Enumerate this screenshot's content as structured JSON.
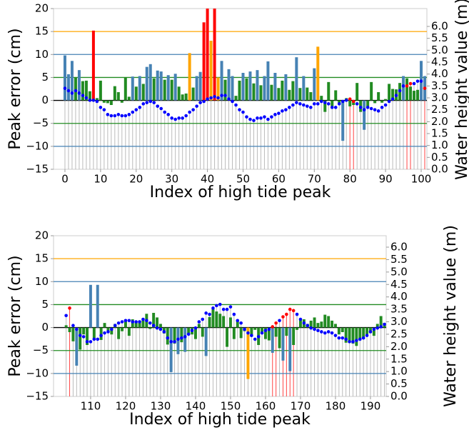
{
  "chart_data": [
    {
      "type": "bar",
      "xlabel": "Index of high tide peak",
      "ylabel": "Peak error (cm)",
      "y2label": "Water height value (m)",
      "xlim": [
        -3.2,
        101.6
      ],
      "xticks": [
        0,
        10,
        20,
        30,
        40,
        50,
        60,
        70,
        80,
        90,
        100
      ],
      "ylim": [
        -15,
        20
      ],
      "yticks": [
        {
          "value": -15,
          "label": "−15"
        },
        {
          "value": -10,
          "label": "−10"
        },
        {
          "value": -5,
          "label": "−5"
        },
        0,
        5,
        10,
        15,
        20
      ],
      "y2lim": [
        0,
        6.75
      ],
      "y2ticks": [
        {
          "value": 0,
          "label": "0.0"
        },
        0.5,
        {
          "value": 1,
          "label": "1.0"
        },
        1.5,
        {
          "value": 2,
          "label": "2.0"
        },
        2.5,
        {
          "value": 3,
          "label": "3.0"
        },
        3.5,
        {
          "value": 4,
          "label": "4.0"
        },
        4.5,
        {
          "value": 5,
          "label": "5.0"
        },
        5.5,
        {
          "value": 6,
          "label": "6.0"
        }
      ],
      "reference_lines": [
        {
          "value": 15,
          "color": "orange"
        },
        {
          "value": 10,
          "color": "steelblue"
        },
        {
          "value": 5,
          "color": "forestgreen"
        },
        {
          "value": 0,
          "color": "black"
        },
        {
          "value": -5,
          "color": "forestgreen"
        },
        {
          "value": -10,
          "color": "steelblue"
        }
      ],
      "x": [
        0,
        1,
        2,
        3,
        4,
        5,
        6,
        7,
        8,
        9,
        10,
        11,
        12,
        13,
        14,
        15,
        16,
        17,
        18,
        19,
        20,
        21,
        22,
        23,
        24,
        25,
        26,
        27,
        28,
        29,
        30,
        31,
        32,
        33,
        34,
        35,
        36,
        37,
        38,
        39,
        40,
        41,
        42,
        43,
        44,
        45,
        46,
        47,
        48,
        49,
        50,
        51,
        52,
        53,
        54,
        55,
        56,
        57,
        58,
        59,
        60,
        61,
        62,
        63,
        64,
        65,
        66,
        67,
        68,
        69,
        70,
        71,
        72,
        73,
        74,
        75,
        76,
        77,
        78,
        79,
        80,
        81,
        82,
        83,
        84,
        85,
        86,
        87,
        88,
        89,
        90,
        91,
        92,
        93,
        94,
        95,
        96,
        97,
        98,
        99,
        100,
        101
      ],
      "values": [
        9.8,
        5.7,
        8.6,
        5,
        6.6,
        4.2,
        4.3,
        2,
        15.2,
        0.5,
        4.3,
        -0.5,
        -0.6,
        -1,
        3.1,
        1.8,
        -0.5,
        5,
        0.8,
        5.2,
        3,
        5.3,
        3.6,
        7.3,
        7.9,
        4.8,
        6.5,
        6.3,
        4.5,
        5.5,
        4.5,
        5.8,
        3,
        1.3,
        1.5,
        10.3,
        2.8,
        5.3,
        6.2,
        17,
        20,
        13,
        20,
        5,
        8.6,
        4.5,
        6.8,
        5.3,
        1,
        4.3,
        6,
        4.8,
        6.3,
        3.7,
        6.6,
        3.3,
        5.3,
        8.5,
        3.4,
        6,
        2.7,
        4.3,
        5.7,
        2.3,
        4.2,
        9.4,
        2.7,
        5.3,
        2.8,
        1.8,
        7,
        11.7,
        1,
        -2.5,
        4,
        -1.3,
        2.2,
        -0.7,
        -8.8,
        0.5,
        -1.3,
        -1,
        3.8,
        -2.5,
        -6.4,
        -1.5,
        4,
        -0.6,
        1.8,
        -0.5,
        0.3,
        3.6,
        2.5,
        2.4,
        3.8,
        5.3,
        4.8,
        3,
        2.1,
        2.3,
        8.6,
        5.3
      ],
      "bar_colors": [
        "steelblue",
        "steelblue",
        "steelblue",
        "forestgreen",
        "steelblue",
        "forestgreen",
        "forestgreen",
        "forestgreen",
        "red",
        "forestgreen",
        "forestgreen",
        "forestgreen",
        "forestgreen",
        "forestgreen",
        "forestgreen",
        "forestgreen",
        "forestgreen",
        "forestgreen",
        "forestgreen",
        "steelblue",
        "forestgreen",
        "steelblue",
        "forestgreen",
        "steelblue",
        "steelblue",
        "forestgreen",
        "steelblue",
        "steelblue",
        "forestgreen",
        "steelblue",
        "forestgreen",
        "steelblue",
        "forestgreen",
        "forestgreen",
        "forestgreen",
        "orange",
        "forestgreen",
        "steelblue",
        "steelblue",
        "red",
        "red",
        "orange",
        "red",
        "orange",
        "steelblue",
        "forestgreen",
        "steelblue",
        "steelblue",
        "forestgreen",
        "forestgreen",
        "steelblue",
        "forestgreen",
        "steelblue",
        "forestgreen",
        "steelblue",
        "forestgreen",
        "steelblue",
        "steelblue",
        "forestgreen",
        "steelblue",
        "forestgreen",
        "forestgreen",
        "steelblue",
        "forestgreen",
        "forestgreen",
        "steelblue",
        "forestgreen",
        "steelblue",
        "forestgreen",
        "forestgreen",
        "steelblue",
        "orange",
        "forestgreen",
        "forestgreen",
        "forestgreen",
        "forestgreen",
        "forestgreen",
        "forestgreen",
        "steelblue",
        "forestgreen",
        "forestgreen",
        "forestgreen",
        "forestgreen",
        "forestgreen",
        "steelblue",
        "forestgreen",
        "forestgreen",
        "forestgreen",
        "forestgreen",
        "forestgreen",
        "forestgreen",
        "forestgreen",
        "forestgreen",
        "forestgreen",
        "forestgreen",
        "steelblue",
        "forestgreen",
        "forestgreen",
        "forestgreen",
        "forestgreen",
        "steelblue",
        "steelblue"
      ],
      "water_height": [
        3.4,
        3.3,
        3.2,
        3.3,
        3.2,
        3.1,
        3.0,
        2.9,
        2.9,
        2.85,
        2.6,
        2.5,
        2.3,
        2.25,
        2.25,
        2.3,
        2.25,
        2.25,
        2.3,
        2.4,
        2.5,
        2.6,
        2.75,
        2.8,
        2.85,
        2.8,
        2.65,
        2.55,
        2.4,
        2.3,
        2.15,
        2.1,
        2.15,
        2.15,
        2.25,
        2.4,
        2.5,
        2.65,
        2.8,
        2.85,
        2.95,
        3.0,
        3.05,
        3.0,
        3.1,
        3.1,
        2.95,
        2.85,
        2.7,
        2.5,
        2.4,
        2.2,
        2.1,
        2.05,
        2.15,
        2.15,
        2.2,
        2.1,
        2.2,
        2.3,
        2.35,
        2.45,
        2.5,
        2.6,
        2.7,
        2.8,
        2.75,
        2.7,
        2.65,
        2.6,
        2.75,
        2.75,
        2.85,
        2.8,
        2.75,
        2.6,
        2.6,
        2.75,
        2.85,
        2.9,
        2.95,
        2.85,
        2.75,
        2.6,
        2.5,
        2.6,
        2.55,
        2.5,
        2.45,
        2.6,
        2.7,
        2.85,
        2.95,
        3.1,
        3.3,
        3.5,
        3.5,
        3.6,
        3.6,
        3.7,
        3.7,
        3.4
      ],
      "dot_colors": [
        "blue",
        "blue",
        "blue",
        "blue",
        "blue",
        "blue",
        "blue",
        "blue",
        "blue",
        "blue",
        "blue",
        "blue",
        "blue",
        "blue",
        "blue",
        "blue",
        "blue",
        "blue",
        "blue",
        "blue",
        "blue",
        "blue",
        "blue",
        "blue",
        "blue",
        "blue",
        "blue",
        "blue",
        "blue",
        "blue",
        "blue",
        "blue",
        "blue",
        "blue",
        "blue",
        "blue",
        "blue",
        "blue",
        "blue",
        "blue",
        "blue",
        "blue",
        "blue",
        "blue",
        "blue",
        "blue",
        "blue",
        "blue",
        "blue",
        "blue",
        "blue",
        "blue",
        "blue",
        "blue",
        "blue",
        "blue",
        "blue",
        "blue",
        "blue",
        "blue",
        "blue",
        "blue",
        "blue",
        "blue",
        "blue",
        "blue",
        "blue",
        "blue",
        "blue",
        "blue",
        "blue",
        "blue",
        "blue",
        "blue",
        "blue",
        "blue",
        "blue",
        "blue",
        "blue",
        "blue",
        "red",
        "red",
        "blue",
        "blue",
        "blue",
        "blue",
        "blue",
        "blue",
        "blue",
        "blue",
        "blue",
        "blue",
        "blue",
        "blue",
        "blue",
        "blue",
        "red",
        "red",
        "blue",
        "blue",
        "blue",
        "red"
      ]
    },
    {
      "type": "bar",
      "xlabel": "Index of high tide peak",
      "ylabel": "Peak error (cm)",
      "y2label": "Water height value (m)",
      "xlim": [
        99.4,
        194.5
      ],
      "xticks": [
        110,
        120,
        130,
        140,
        150,
        160,
        170,
        180,
        190
      ],
      "ylim": [
        -15,
        20
      ],
      "yticks": [
        {
          "value": -15,
          "label": "−15"
        },
        {
          "value": -10,
          "label": "−10"
        },
        {
          "value": -5,
          "label": "−5"
        },
        0,
        5,
        10,
        15,
        20
      ],
      "y2lim": [
        0,
        6.46
      ],
      "y2ticks": [
        {
          "value": 0,
          "label": "0.0"
        },
        0.5,
        {
          "value": 1,
          "label": "1.0"
        },
        1.5,
        {
          "value": 2,
          "label": "2.0"
        },
        2.5,
        {
          "value": 3,
          "label": "3.0"
        },
        3.5,
        {
          "value": 4,
          "label": "4.0"
        },
        4.5,
        {
          "value": 5,
          "label": "5.0"
        },
        5.5,
        {
          "value": 6,
          "label": "6.0"
        }
      ],
      "reference_lines": [
        {
          "value": 15,
          "color": "orange"
        },
        {
          "value": 10,
          "color": "steelblue"
        },
        {
          "value": 5,
          "color": "forestgreen"
        },
        {
          "value": 0,
          "color": "black"
        },
        {
          "value": -5,
          "color": "forestgreen"
        },
        {
          "value": -10,
          "color": "steelblue"
        }
      ],
      "x": [
        103,
        104,
        105,
        106,
        107,
        108,
        109,
        110,
        111,
        112,
        113,
        114,
        115,
        116,
        117,
        118,
        119,
        120,
        121,
        122,
        123,
        124,
        125,
        126,
        127,
        128,
        129,
        130,
        131,
        132,
        133,
        134,
        135,
        136,
        137,
        138,
        139,
        140,
        141,
        142,
        143,
        144,
        145,
        146,
        147,
        148,
        149,
        150,
        151,
        152,
        153,
        154,
        155,
        156,
        157,
        158,
        159,
        160,
        161,
        162,
        163,
        164,
        165,
        166,
        167,
        168,
        169,
        170,
        171,
        172,
        173,
        174,
        175,
        176,
        177,
        178,
        179,
        180,
        181,
        182,
        183,
        184,
        185,
        186,
        187,
        188,
        189,
        190,
        191,
        192,
        193,
        194
      ],
      "values": [
        0.5,
        -1,
        -3,
        -8.3,
        -4.8,
        -1.5,
        -3.8,
        9.3,
        -2.5,
        9.3,
        -2.7,
        1,
        -1,
        -1.5,
        0.8,
        -2.5,
        -0.8,
        1.7,
        -1.8,
        1.8,
        1.3,
        1.5,
        2,
        3,
        -0.3,
        3.2,
        2.2,
        0.8,
        -1.3,
        -3.7,
        -9.7,
        -3.5,
        -5.8,
        -3.2,
        -5.3,
        -1.5,
        -1.5,
        -2.5,
        0.8,
        -2,
        -6.2,
        2.3,
        4,
        3.5,
        3,
        2.5,
        -4.2,
        2.2,
        -2.5,
        1.5,
        -2.3,
        -0.8,
        -11.2,
        -2,
        -0.5,
        -3.8,
        -1.3,
        -2.5,
        -2.8,
        -5.5,
        -2,
        -4.5,
        -7.2,
        -1.8,
        -9.5,
        -3.8,
        -0.5,
        1.7,
        1.8,
        0.8,
        1.5,
        2.2,
        1,
        1.3,
        2.8,
        2.5,
        1.5,
        0.8,
        -1.5,
        -1,
        -3.3,
        -3,
        -3.5,
        -4,
        -2.8,
        -2.5,
        -1.5,
        -1.2,
        -1.8,
        0.8,
        2.5,
        1
      ],
      "bar_colors": [
        "forestgreen",
        "forestgreen",
        "forestgreen",
        "steelblue",
        "forestgreen",
        "forestgreen",
        "forestgreen",
        "steelblue",
        "forestgreen",
        "steelblue",
        "forestgreen",
        "forestgreen",
        "forestgreen",
        "forestgreen",
        "forestgreen",
        "forestgreen",
        "forestgreen",
        "forestgreen",
        "forestgreen",
        "forestgreen",
        "forestgreen",
        "forestgreen",
        "forestgreen",
        "forestgreen",
        "forestgreen",
        "forestgreen",
        "forestgreen",
        "forestgreen",
        "forestgreen",
        "forestgreen",
        "steelblue",
        "forestgreen",
        "steelblue",
        "forestgreen",
        "steelblue",
        "forestgreen",
        "forestgreen",
        "forestgreen",
        "forestgreen",
        "forestgreen",
        "steelblue",
        "forestgreen",
        "forestgreen",
        "forestgreen",
        "forestgreen",
        "forestgreen",
        "forestgreen",
        "forestgreen",
        "forestgreen",
        "forestgreen",
        "forestgreen",
        "forestgreen",
        "orange",
        "forestgreen",
        "forestgreen",
        "forestgreen",
        "forestgreen",
        "forestgreen",
        "forestgreen",
        "steelblue",
        "forestgreen",
        "forestgreen",
        "steelblue",
        "forestgreen",
        "steelblue",
        "forestgreen",
        "forestgreen",
        "forestgreen",
        "forestgreen",
        "forestgreen",
        "forestgreen",
        "forestgreen",
        "forestgreen",
        "forestgreen",
        "forestgreen",
        "forestgreen",
        "forestgreen",
        "forestgreen",
        "forestgreen",
        "forestgreen",
        "forestgreen",
        "forestgreen",
        "forestgreen",
        "forestgreen",
        "forestgreen",
        "forestgreen",
        "forestgreen",
        "forestgreen",
        "forestgreen",
        "forestgreen",
        "forestgreen",
        "forestgreen"
      ],
      "water_height": [
        3.25,
        3.55,
        2.85,
        2.7,
        2.45,
        2.4,
        2.2,
        2.2,
        2.3,
        2.3,
        2.45,
        2.55,
        2.6,
        2.7,
        2.85,
        2.95,
        3.0,
        3.05,
        3.05,
        3.0,
        3.0,
        3.0,
        3.1,
        3.05,
        2.95,
        2.85,
        2.75,
        2.7,
        2.6,
        2.35,
        2.2,
        2.2,
        2.3,
        2.35,
        2.4,
        2.5,
        2.65,
        2.75,
        3.0,
        3.1,
        3.35,
        3.3,
        3.55,
        3.65,
        3.7,
        3.5,
        3.5,
        3.6,
        3.3,
        3.05,
        2.95,
        2.7,
        2.55,
        2.45,
        2.3,
        2.4,
        2.55,
        2.65,
        2.7,
        2.8,
        2.95,
        3.05,
        3.2,
        3.3,
        3.5,
        3.45,
        3.3,
        3.1,
        2.95,
        2.85,
        2.75,
        2.7,
        2.65,
        2.6,
        2.55,
        2.6,
        2.55,
        2.45,
        2.35,
        2.35,
        2.3,
        2.2,
        2.2,
        2.25,
        2.3,
        2.35,
        2.45,
        2.6,
        2.7,
        2.75,
        2.8,
        2.9
      ],
      "dot_colors": [
        "blue",
        "red",
        "blue",
        "blue",
        "blue",
        "blue",
        "blue",
        "blue",
        "blue",
        "blue",
        "blue",
        "blue",
        "blue",
        "blue",
        "blue",
        "blue",
        "blue",
        "blue",
        "blue",
        "blue",
        "blue",
        "blue",
        "blue",
        "blue",
        "blue",
        "blue",
        "blue",
        "blue",
        "blue",
        "blue",
        "blue",
        "blue",
        "blue",
        "blue",
        "blue",
        "blue",
        "blue",
        "blue",
        "blue",
        "blue",
        "blue",
        "blue",
        "blue",
        "blue",
        "blue",
        "blue",
        "blue",
        "blue",
        "blue",
        "blue",
        "blue",
        "blue",
        "blue",
        "blue",
        "blue",
        "blue",
        "blue",
        "blue",
        "blue",
        "red",
        "red",
        "blue",
        "red",
        "red",
        "red",
        "red",
        "blue",
        "blue",
        "blue",
        "blue",
        "blue",
        "blue",
        "blue",
        "blue",
        "blue",
        "blue",
        "blue",
        "blue",
        "blue",
        "blue",
        "blue",
        "blue",
        "blue",
        "blue",
        "blue",
        "blue",
        "blue",
        "blue",
        "blue",
        "blue",
        "blue",
        "blue"
      ]
    }
  ]
}
